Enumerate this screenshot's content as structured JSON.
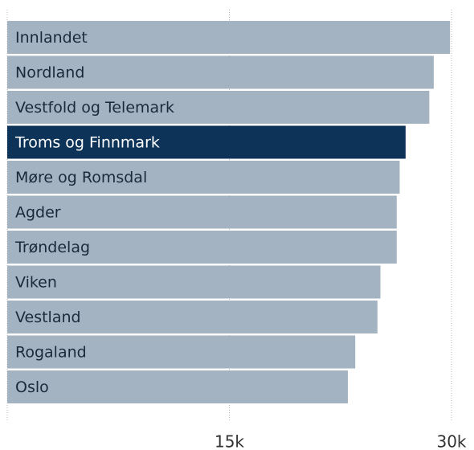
{
  "chart_data": {
    "type": "barh",
    "categories": [
      "Innlandet",
      "Nordland",
      "Vestfold og Telemark",
      "Troms og Finnmark",
      "Møre og Romsdal",
      "Agder",
      "Trøndelag",
      "Viken",
      "Vestland",
      "Rogaland",
      "Oslo"
    ],
    "values": [
      29900,
      28800,
      28500,
      26900,
      26500,
      26300,
      26300,
      25200,
      25000,
      23500,
      23000
    ],
    "colors": [
      "#a3b3c1",
      "#a3b3c1",
      "#a3b3c1",
      "#0d3358",
      "#a3b3c1",
      "#a3b3c1",
      "#a3b3c1",
      "#a3b3c1",
      "#a3b3c1",
      "#a3b3c1",
      "#a3b3c1"
    ],
    "xlim": [
      0,
      30000
    ],
    "xticks": [
      {
        "value": 15000,
        "label": "15k"
      },
      {
        "value": 30000,
        "label": "30k"
      }
    ],
    "grid": true
  }
}
